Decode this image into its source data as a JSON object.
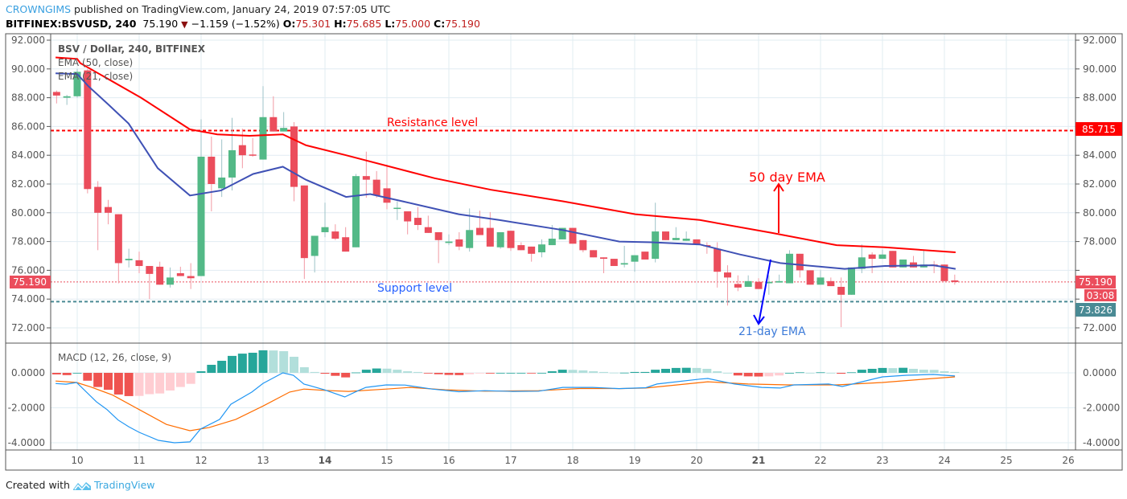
{
  "header": {
    "author": "CROWNGIMS",
    "published": "published on TradingView.com, January 24, 2019 07:57:05 UTC",
    "symbol": "BITFINEX:BSVUSD, 240",
    "last": "75.190",
    "change": "−1.159 (−1.52%)",
    "o_label": "O:",
    "o": "75.301",
    "h_label": "H:",
    "h": "75.685",
    "l_label": "L:",
    "l": "75.000",
    "c_label": "C:",
    "c": "75.190",
    "change_icon": "triangle-down-icon"
  },
  "legend": {
    "title": "BSV / Dollar, 240, BITFINEX",
    "ema50": "EMA (50, close)",
    "ema21": "EMA (21, close)",
    "macd": "MACD (12, 26, close, 9)"
  },
  "annotations": {
    "resistance": "Resistance level",
    "support": "Support level",
    "ema50": "50 day EMA",
    "ema21": "21-day EMA"
  },
  "price_labels": {
    "resistance": "85.715",
    "last": "75.190",
    "countdown": "03:08",
    "support": "73.826"
  },
  "footer": {
    "created": "Created with",
    "brand": "TradingView"
  },
  "colors": {
    "up": "#53b987",
    "down": "#eb4d5c",
    "ema50": "#ff0000",
    "ema21": "#3f51b5",
    "macd": "#2196f3",
    "signal": "#ff6d00",
    "hist_up_strong": "#26a69a",
    "hist_up_weak": "#b2dfdb",
    "hist_down_strong": "#ef5350",
    "hist_down_weak": "#ffcdd2",
    "support_line": "#4a8a94",
    "grid": "#e1ecf2"
  },
  "chart_data": [
    {
      "type": "candlestick",
      "interval": "240",
      "price_ticks": [
        "72.000",
        "74.000",
        "76.000",
        "78.000",
        "80.000",
        "82.000",
        "84.000",
        "86.000",
        "88.000",
        "90.000",
        "92.000"
      ],
      "ylim": [
        72,
        92
      ],
      "x_ticks": [
        "10",
        "11",
        "12",
        "13",
        "14",
        "15",
        "16",
        "17",
        "18",
        "19",
        "20",
        "21",
        "22",
        "23",
        "24",
        "25",
        "26"
      ],
      "ohlc": [
        [
          88.4,
          88.5,
          87.6,
          88.15
        ],
        [
          88.0,
          88.2,
          87.5,
          88.1
        ],
        [
          88.1,
          90.0,
          88.0,
          89.8
        ],
        [
          89.9,
          90.0,
          81.35,
          81.65
        ],
        [
          81.8,
          82.2,
          77.4,
          80.0
        ],
        [
          80.4,
          80.9,
          79.2,
          80.0
        ],
        [
          79.9,
          79.9,
          75.1,
          76.5
        ],
        [
          76.7,
          77.5,
          76.2,
          76.8
        ],
        [
          76.7,
          77.3,
          75.8,
          76.3
        ],
        [
          76.3,
          76.3,
          74.0,
          75.75
        ],
        [
          76.25,
          76.6,
          75.0,
          75.0
        ],
        [
          75.0,
          76.2,
          74.8,
          75.5
        ],
        [
          75.8,
          76.25,
          75.6,
          75.6
        ],
        [
          75.6,
          76.5,
          74.7,
          75.45
        ],
        [
          75.6,
          86.5,
          75.6,
          83.9
        ],
        [
          83.9,
          85.3,
          80.1,
          82.0
        ],
        [
          81.7,
          85.1,
          81.1,
          82.45
        ],
        [
          82.45,
          86.6,
          81.55,
          84.35
        ],
        [
          84.7,
          85.85,
          83.1,
          84.0
        ],
        [
          84.05,
          85.2,
          83.9,
          84.0
        ],
        [
          83.7,
          88.8,
          83.7,
          86.65
        ],
        [
          86.65,
          88.1,
          85.65,
          85.65
        ],
        [
          85.65,
          87.0,
          85.65,
          85.9
        ],
        [
          86.0,
          86.3,
          80.8,
          81.8
        ],
        [
          81.9,
          81.9,
          75.4,
          76.85
        ],
        [
          77.0,
          78.4,
          75.85,
          78.4
        ],
        [
          78.65,
          80.7,
          78.3,
          79.0
        ],
        [
          78.7,
          79.2,
          78.1,
          78.2
        ],
        [
          78.3,
          79.0,
          77.3,
          77.3
        ],
        [
          77.6,
          82.7,
          77.6,
          82.55
        ],
        [
          82.55,
          84.25,
          81.05,
          82.3
        ],
        [
          82.3,
          82.9,
          81.05,
          81.2
        ],
        [
          81.7,
          83.35,
          80.25,
          80.7
        ],
        [
          80.3,
          80.8,
          79.5,
          80.35
        ],
        [
          80.1,
          80.1,
          78.5,
          79.4
        ],
        [
          79.65,
          80.4,
          78.8,
          79.15
        ],
        [
          79.0,
          79.8,
          78.6,
          78.6
        ],
        [
          78.65,
          78.65,
          76.5,
          78.1
        ],
        [
          77.9,
          78.5,
          77.75,
          78.0
        ],
        [
          78.15,
          78.65,
          77.4,
          77.65
        ],
        [
          77.55,
          80.3,
          77.3,
          78.8
        ],
        [
          78.95,
          80.15,
          78.45,
          78.45
        ],
        [
          78.95,
          80.05,
          77.65,
          77.65
        ],
        [
          77.6,
          78.65,
          77.5,
          78.65
        ],
        [
          78.75,
          78.75,
          77.35,
          77.55
        ],
        [
          77.75,
          77.95,
          77.4,
          77.4
        ],
        [
          77.65,
          77.65,
          76.6,
          77.15
        ],
        [
          77.25,
          78.15,
          76.9,
          77.8
        ],
        [
          77.75,
          79.15,
          77.75,
          78.2
        ],
        [
          78.15,
          78.95,
          78.15,
          78.95
        ],
        [
          78.95,
          78.95,
          77.85,
          77.85
        ],
        [
          78.1,
          78.1,
          77.25,
          77.4
        ],
        [
          77.4,
          77.4,
          76.9,
          76.9
        ],
        [
          76.9,
          76.9,
          75.8,
          76.8
        ],
        [
          76.8,
          76.8,
          76.3,
          76.3
        ],
        [
          76.4,
          77.7,
          76.2,
          76.5
        ],
        [
          76.6,
          77.05,
          75.9,
          77.05
        ],
        [
          77.3,
          77.3,
          76.75,
          76.75
        ],
        [
          76.8,
          80.7,
          76.55,
          78.7
        ],
        [
          78.7,
          78.7,
          78.1,
          78.1
        ],
        [
          78.1,
          79.0,
          78.1,
          78.25
        ],
        [
          78.05,
          78.7,
          78.05,
          78.2
        ],
        [
          78.15,
          78.15,
          77.8,
          77.8
        ],
        [
          77.75,
          77.95,
          77.15,
          77.7
        ],
        [
          77.5,
          77.95,
          74.8,
          75.9
        ],
        [
          75.85,
          76.35,
          73.55,
          75.5
        ],
        [
          75.05,
          75.65,
          74.55,
          74.8
        ],
        [
          74.85,
          75.65,
          74.85,
          75.25
        ],
        [
          75.2,
          75.45,
          74.7,
          74.7
        ],
        [
          75.1,
          75.65,
          74.3,
          75.2
        ],
        [
          75.15,
          75.7,
          75.15,
          75.25
        ],
        [
          75.1,
          77.4,
          75.1,
          77.15
        ],
        [
          77.15,
          77.15,
          75.5,
          76.0
        ],
        [
          76.0,
          76.0,
          75.0,
          75.0
        ],
        [
          75.0,
          76.0,
          75.0,
          75.5
        ],
        [
          75.25,
          75.5,
          74.9,
          74.9
        ],
        [
          74.85,
          75.5,
          72.05,
          74.3
        ],
        [
          74.3,
          76.2,
          74.3,
          76.2
        ],
        [
          76.1,
          77.8,
          75.8,
          76.9
        ],
        [
          77.1,
          77.25,
          75.8,
          76.8
        ],
        [
          76.8,
          77.45,
          76.8,
          77.1
        ],
        [
          77.35,
          77.35,
          76.2,
          76.2
        ],
        [
          76.2,
          76.75,
          76.2,
          76.75
        ],
        [
          76.55,
          77.0,
          76.2,
          76.2
        ],
        [
          76.2,
          77.45,
          76.2,
          76.4
        ],
        [
          76.4,
          76.65,
          75.8,
          76.35
        ],
        [
          76.4,
          76.4,
          75.25,
          75.25
        ],
        [
          75.3,
          75.7,
          75.0,
          75.19
        ]
      ],
      "ema50": [
        [
          9.65,
          90.8
        ],
        [
          10.0,
          90.7
        ],
        [
          10.05,
          90.4
        ],
        [
          11.03,
          88.0
        ],
        [
          11.82,
          85.8
        ],
        [
          12.26,
          85.45
        ],
        [
          12.78,
          85.35
        ],
        [
          13.32,
          85.45
        ],
        [
          13.69,
          84.7
        ],
        [
          14.34,
          84.0
        ],
        [
          15.77,
          82.4
        ],
        [
          16.68,
          81.6
        ],
        [
          17.84,
          80.8
        ],
        [
          19.01,
          79.9
        ],
        [
          20.05,
          79.5
        ],
        [
          21.22,
          78.6
        ],
        [
          22.26,
          77.75
        ],
        [
          23.04,
          77.6
        ],
        [
          24.18,
          77.25
        ]
      ],
      "ema21": [
        [
          9.65,
          89.7
        ],
        [
          10.0,
          89.65
        ],
        [
          10.18,
          88.8
        ],
        [
          10.51,
          87.5
        ],
        [
          10.83,
          86.2
        ],
        [
          11.3,
          83.1
        ],
        [
          11.82,
          81.2
        ],
        [
          12.32,
          81.55
        ],
        [
          12.84,
          82.7
        ],
        [
          13.32,
          83.2
        ],
        [
          13.69,
          82.3
        ],
        [
          14.34,
          81.1
        ],
        [
          14.73,
          81.3
        ],
        [
          15.25,
          80.8
        ],
        [
          16.16,
          79.9
        ],
        [
          16.81,
          79.5
        ],
        [
          17.84,
          78.8
        ],
        [
          18.75,
          78.0
        ],
        [
          19.27,
          77.95
        ],
        [
          20.05,
          77.8
        ],
        [
          20.7,
          77.1
        ],
        [
          21.35,
          76.5
        ],
        [
          22.39,
          76.1
        ],
        [
          23.04,
          76.3
        ],
        [
          23.82,
          76.35
        ],
        [
          24.18,
          76.1
        ]
      ],
      "resistance": 85.715,
      "support": 73.826,
      "last": 75.19
    },
    {
      "type": "macd",
      "ticks": [
        "0.0000",
        "-2.0000",
        "-4.0000"
      ],
      "ylim": [
        -4.3,
        1.6
      ],
      "histogram": [
        -0.09,
        -0.13,
        0,
        -0.45,
        -0.81,
        -0.97,
        -1.24,
        -1.33,
        -1.32,
        -1.22,
        -1.18,
        -1.01,
        -0.81,
        -0.63,
        0.09,
        0.46,
        0.69,
        0.97,
        1.1,
        1.15,
        1.29,
        1.28,
        1.24,
        0.92,
        0.32,
        0.05,
        -0.05,
        -0.17,
        -0.26,
        0.02,
        0.18,
        0.25,
        0.24,
        0.18,
        0.09,
        0.05,
        -0.03,
        -0.08,
        -0.12,
        -0.13,
        -0.08,
        -0.03,
        -0.04,
        0,
        0,
        0,
        -0.03,
        0,
        0.09,
        0.18,
        0.17,
        0.14,
        0.09,
        0.05,
        0.01,
        0.01,
        0.05,
        0.05,
        0.18,
        0.23,
        0.28,
        0.29,
        0.28,
        0.23,
        0.09,
        0,
        -0.15,
        -0.2,
        -0.21,
        -0.2,
        -0.15,
        0,
        0.03,
        0,
        0.03,
        0,
        -0.05,
        0.03,
        0.18,
        0.23,
        0.28,
        0.27,
        0.29,
        0.23,
        0.18,
        0.17,
        0.09,
        0.05
      ],
      "macd": [
        [
          9.65,
          -0.61
        ],
        [
          9.82,
          -0.65
        ],
        [
          9.99,
          -0.55
        ],
        [
          10.31,
          -1.66
        ],
        [
          10.48,
          -2.1
        ],
        [
          10.66,
          -2.7
        ],
        [
          10.83,
          -3.08
        ],
        [
          11.0,
          -3.4
        ],
        [
          11.31,
          -3.86
        ],
        [
          11.57,
          -4.0
        ],
        [
          11.82,
          -3.95
        ],
        [
          11.99,
          -3.22
        ],
        [
          12.3,
          -2.66
        ],
        [
          12.48,
          -1.8
        ],
        [
          12.82,
          -1.1
        ],
        [
          13.0,
          -0.6
        ],
        [
          13.32,
          0.0
        ],
        [
          13.49,
          -0.14
        ],
        [
          13.66,
          -0.64
        ],
        [
          13.99,
          -0.97
        ],
        [
          14.32,
          -1.38
        ],
        [
          14.51,
          -1.06
        ],
        [
          14.66,
          -0.83
        ],
        [
          14.99,
          -0.69
        ],
        [
          15.29,
          -0.7
        ],
        [
          15.73,
          -0.93
        ],
        [
          16.16,
          -1.08
        ],
        [
          16.58,
          -1.02
        ],
        [
          17.03,
          -1.06
        ],
        [
          17.45,
          -1.05
        ],
        [
          17.84,
          -0.83
        ],
        [
          18.32,
          -0.83
        ],
        [
          18.75,
          -0.9
        ],
        [
          19.18,
          -0.85
        ],
        [
          19.36,
          -0.64
        ],
        [
          20.05,
          -0.36
        ],
        [
          20.18,
          -0.32
        ],
        [
          20.61,
          -0.64
        ],
        [
          21.05,
          -0.83
        ],
        [
          21.35,
          -0.87
        ],
        [
          21.57,
          -0.69
        ],
        [
          22.13,
          -0.64
        ],
        [
          22.35,
          -0.78
        ],
        [
          23.0,
          -0.23
        ],
        [
          23.39,
          -0.14
        ],
        [
          23.82,
          -0.09
        ],
        [
          24.17,
          -0.18
        ]
      ],
      "signal": [
        [
          9.65,
          -0.47
        ],
        [
          9.99,
          -0.55
        ],
        [
          10.22,
          -0.81
        ],
        [
          10.57,
          -1.27
        ],
        [
          11.0,
          -2.1
        ],
        [
          11.44,
          -2.95
        ],
        [
          11.82,
          -3.31
        ],
        [
          12.13,
          -3.13
        ],
        [
          12.56,
          -2.66
        ],
        [
          13.0,
          -1.9
        ],
        [
          13.43,
          -1.1
        ],
        [
          13.66,
          -0.93
        ],
        [
          13.99,
          -1.0
        ],
        [
          14.38,
          -1.06
        ],
        [
          14.99,
          -0.93
        ],
        [
          15.38,
          -0.83
        ],
        [
          15.94,
          -0.97
        ],
        [
          16.58,
          -1.05
        ],
        [
          17.45,
          -1.02
        ],
        [
          18.14,
          -0.89
        ],
        [
          18.75,
          -0.9
        ],
        [
          19.18,
          -0.87
        ],
        [
          19.83,
          -0.64
        ],
        [
          20.18,
          -0.51
        ],
        [
          20.83,
          -0.64
        ],
        [
          21.48,
          -0.69
        ],
        [
          22.26,
          -0.69
        ],
        [
          23.0,
          -0.55
        ],
        [
          23.65,
          -0.37
        ],
        [
          24.17,
          -0.23
        ]
      ]
    }
  ]
}
